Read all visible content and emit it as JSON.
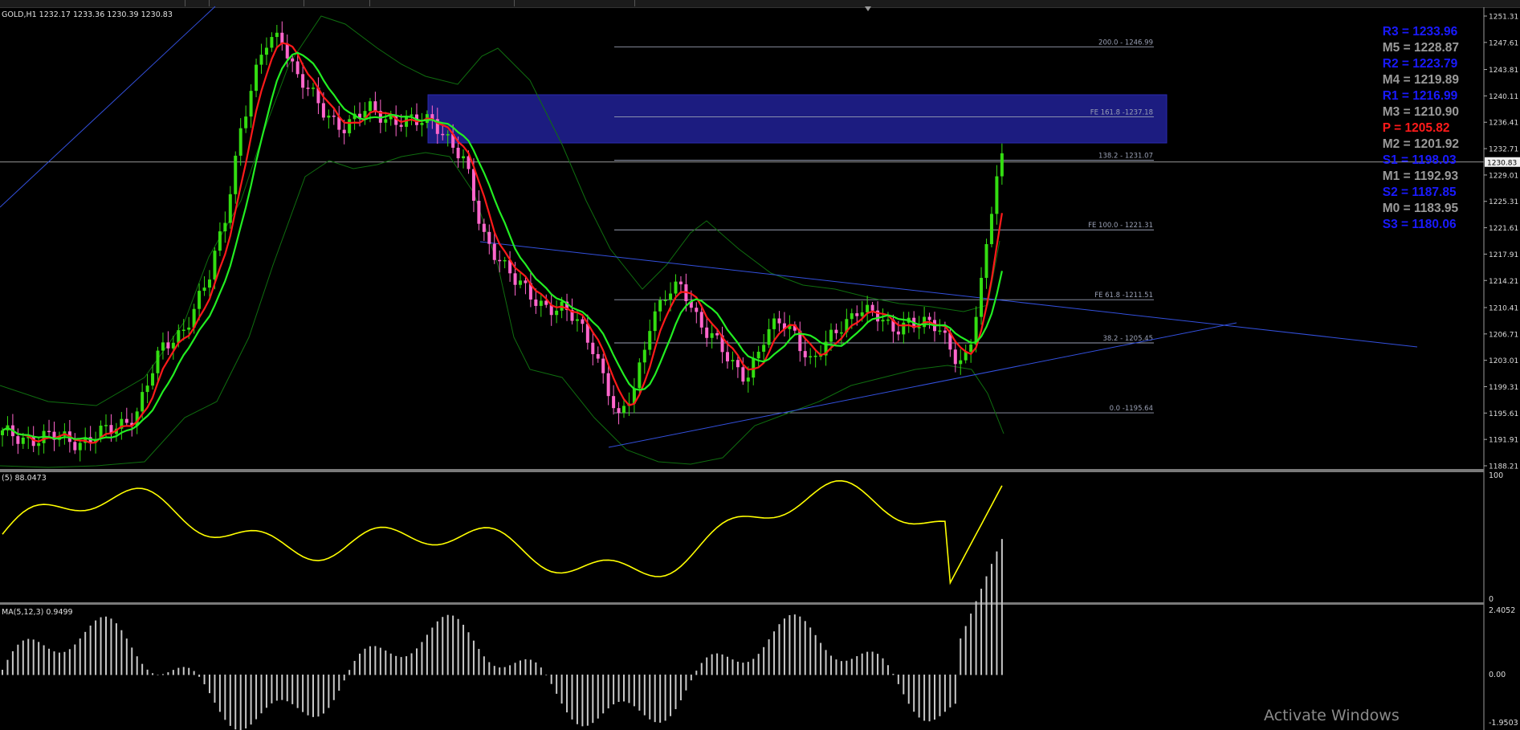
{
  "symbol_header": "GOLD,H1  1232.17 1233.36 1230.39 1230.83",
  "price_axis": [
    "1251.31",
    "1247.61",
    "1243.81",
    "1240.11",
    "1236.41",
    "1232.71",
    "1229.01",
    "1225.31",
    "1221.61",
    "1217.91",
    "1214.21",
    "1210.41",
    "1206.71",
    "1203.01",
    "1199.31",
    "1195.61",
    "1191.91",
    "1188.21"
  ],
  "current_price": "1230.83",
  "pivots": [
    {
      "label": "R3 = 1233.96",
      "color": "blue"
    },
    {
      "label": "M5 = 1228.87",
      "color": "gray"
    },
    {
      "label": "R2 = 1223.79",
      "color": "blue"
    },
    {
      "label": "M4 = 1219.89",
      "color": "gray"
    },
    {
      "label": "R1 = 1216.99",
      "color": "blue"
    },
    {
      "label": "M3 = 1210.90",
      "color": "gray"
    },
    {
      "label": "P  = 1205.82",
      "color": "red"
    },
    {
      "label": "M2 = 1201.92",
      "color": "gray"
    },
    {
      "label": "S1 = 1198.03",
      "color": "blue"
    },
    {
      "label": "M1 = 1192.93",
      "color": "gray"
    },
    {
      "label": "S2 = 1187.85",
      "color": "blue"
    },
    {
      "label": "M0 = 1183.95",
      "color": "gray"
    },
    {
      "label": "S3 = 1180.06",
      "color": "blue"
    }
  ],
  "fib_levels": [
    {
      "label": "200.0 - 1246.99",
      "price": 1246.99
    },
    {
      "label": "FE 161.8 -1237.18",
      "price": 1237.18
    },
    {
      "label": "138.2 - 1231.07",
      "price": 1231.07
    },
    {
      "label": "FE 100.0 - 1221.31",
      "price": 1221.31
    },
    {
      "label": "FE 61.8 -1211.51",
      "price": 1211.51
    },
    {
      "label": "38.2 - 1205.45",
      "price": 1205.45
    },
    {
      "label": "0.0 -1195.64",
      "price": 1195.64
    }
  ],
  "indicator1": {
    "header": "(5) 88.0473",
    "axis_top": "100",
    "axis_bottom": "0"
  },
  "indicator2": {
    "header": "MA(5,12,3) 0.9499",
    "axis_top": "2.4052",
    "axis_mid": "0.00",
    "axis_bottom": "-1.9503"
  },
  "watermark": "Activate Windows",
  "colors": {
    "bull": "#33dd11",
    "bear": "#ff66cc",
    "ma_fast": "#ff1a1a",
    "ma_slow": "#22ee22",
    "band": "#0f6e0f",
    "trend": "#3350dd",
    "zone": "#1c1c80",
    "osc": "#ffff00",
    "hist": "#c8c8c8"
  }
}
